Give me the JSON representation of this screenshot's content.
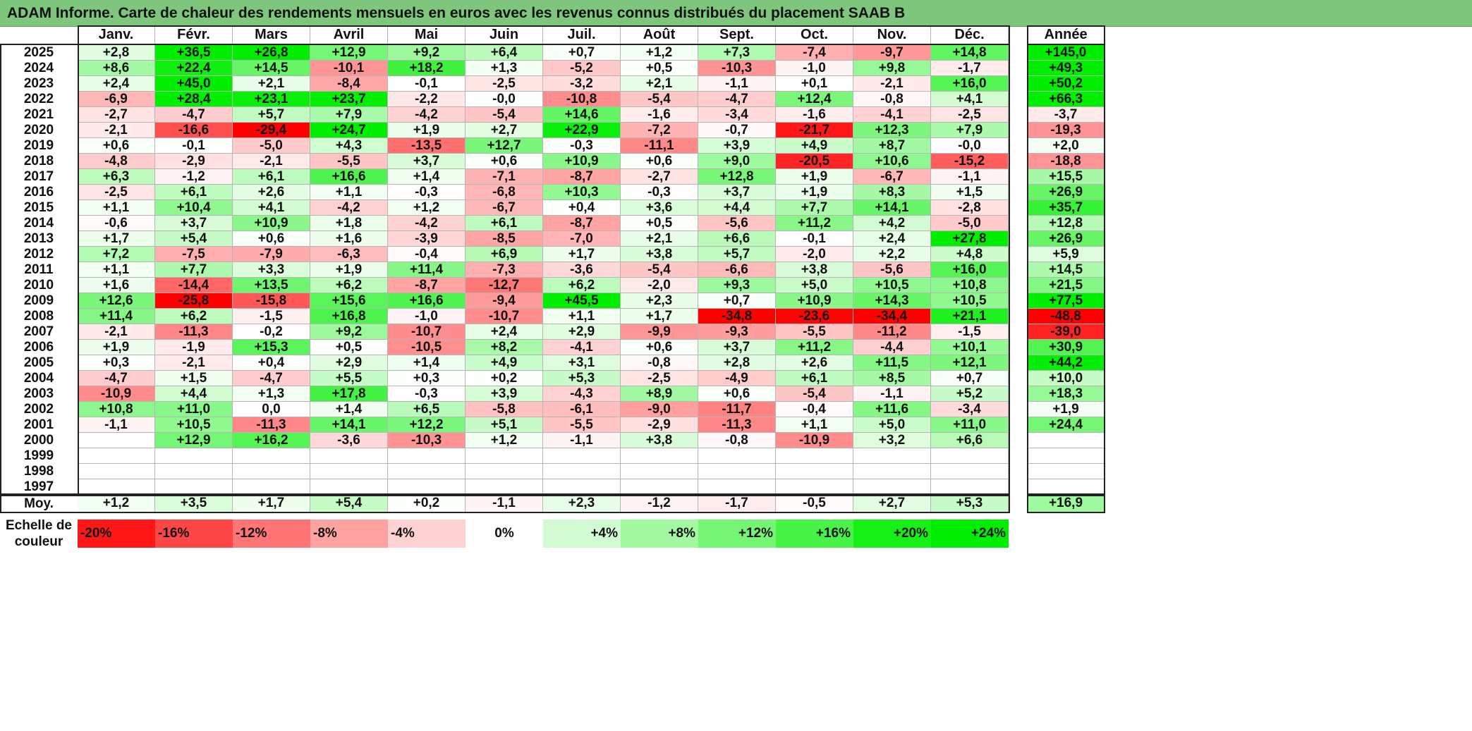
{
  "title": "ADAM Informe. Carte de chaleur des rendements mensuels en euros avec les revenus connus distribués du placement SAAB B",
  "chart_data": {
    "type": "heatmap",
    "columns": [
      "Janv.",
      "Févr.",
      "Mars",
      "Avril",
      "Mai",
      "Juin",
      "Juil.",
      "Août",
      "Sept.",
      "Oct.",
      "Nov.",
      "Déc."
    ],
    "year_label": "Année",
    "avg_label": "Moy.",
    "rows": [
      {
        "year": "2025",
        "values": [
          "+2,8",
          "+36,5",
          "+26,8",
          "+12,9",
          "+9,2",
          "+6,4",
          "+0,7",
          "+1,2",
          "+7,3",
          "-7,4",
          "-9,7",
          "+14,8"
        ],
        "annual": "+145,0"
      },
      {
        "year": "2024",
        "values": [
          "+8,6",
          "+22,4",
          "+14,5",
          "-10,1",
          "+18,2",
          "+1,3",
          "-5,2",
          "+0,5",
          "-10,3",
          "-1,0",
          "+9,8",
          "-1,7"
        ],
        "annual": "+49,3"
      },
      {
        "year": "2023",
        "values": [
          "+2,4",
          "+45,0",
          "+2,1",
          "-8,4",
          "-0,1",
          "-2,5",
          "-3,2",
          "+2,1",
          "-1,1",
          "+0,1",
          "-2,1",
          "+16,0"
        ],
        "annual": "+50,2"
      },
      {
        "year": "2022",
        "values": [
          "-6,9",
          "+28,4",
          "+23,1",
          "+23,7",
          "-2,2",
          "-0,0",
          "-10,8",
          "-5,4",
          "-4,7",
          "+12,4",
          "-0,8",
          "+4,1"
        ],
        "annual": "+66,3"
      },
      {
        "year": "2021",
        "values": [
          "-2,7",
          "-4,7",
          "+5,7",
          "+7,9",
          "-4,2",
          "-5,4",
          "+14,6",
          "-1,6",
          "-3,4",
          "-1,6",
          "-4,1",
          "-2,5"
        ],
        "annual": "-3,7"
      },
      {
        "year": "2020",
        "values": [
          "-2,1",
          "-16,6",
          "-29,4",
          "+24,7",
          "+1,9",
          "+2,7",
          "+22,9",
          "-7,2",
          "-0,7",
          "-21,7",
          "+12,3",
          "+7,9"
        ],
        "annual": "-19,3"
      },
      {
        "year": "2019",
        "values": [
          "+0,6",
          "-0,1",
          "-5,0",
          "+4,3",
          "-13,5",
          "+12,7",
          "-0,3",
          "-11,1",
          "+3,9",
          "+4,9",
          "+8,7",
          "-0,0"
        ],
        "annual": "+2,0"
      },
      {
        "year": "2018",
        "values": [
          "-4,8",
          "-2,9",
          "-2,1",
          "-5,5",
          "+3,7",
          "+0,6",
          "+10,9",
          "+0,6",
          "+9,0",
          "-20,5",
          "+10,6",
          "-15,2"
        ],
        "annual": "-18,8"
      },
      {
        "year": "2017",
        "values": [
          "+6,3",
          "-1,2",
          "+6,1",
          "+16,6",
          "+1,4",
          "-7,1",
          "-8,7",
          "-2,7",
          "+12,8",
          "+1,9",
          "-6,7",
          "-1,1"
        ],
        "annual": "+15,5"
      },
      {
        "year": "2016",
        "values": [
          "-2,5",
          "+6,1",
          "+2,6",
          "+1,1",
          "-0,3",
          "-6,8",
          "+10,3",
          "-0,3",
          "+3,7",
          "+1,9",
          "+8,3",
          "+1,5"
        ],
        "annual": "+26,9"
      },
      {
        "year": "2015",
        "values": [
          "+1,1",
          "+10,4",
          "+4,1",
          "-4,2",
          "+1,2",
          "-6,7",
          "+0,4",
          "+3,6",
          "+4,4",
          "+7,7",
          "+14,1",
          "-2,8"
        ],
        "annual": "+35,7"
      },
      {
        "year": "2014",
        "values": [
          "-0,6",
          "+3,7",
          "+10,9",
          "+1,8",
          "-4,2",
          "+6,1",
          "-8,7",
          "+0,5",
          "-5,6",
          "+11,2",
          "+4,2",
          "-5,0"
        ],
        "annual": "+12,8"
      },
      {
        "year": "2013",
        "values": [
          "+1,7",
          "+5,4",
          "+0,6",
          "+1,6",
          "-3,9",
          "-8,5",
          "-7,0",
          "+2,1",
          "+6,6",
          "-0,1",
          "+2,4",
          "+27,8"
        ],
        "annual": "+26,9"
      },
      {
        "year": "2012",
        "values": [
          "+7,2",
          "-7,5",
          "-7,9",
          "-6,3",
          "-0,4",
          "+6,9",
          "+1,7",
          "+3,8",
          "+5,7",
          "-2,0",
          "+2,2",
          "+4,8"
        ],
        "annual": "+5,9"
      },
      {
        "year": "2011",
        "values": [
          "+1,1",
          "+7,7",
          "+3,3",
          "+1,9",
          "+11,4",
          "-7,3",
          "-3,6",
          "-5,4",
          "-6,6",
          "+3,8",
          "-5,6",
          "+16,0"
        ],
        "annual": "+14,5"
      },
      {
        "year": "2010",
        "values": [
          "+1,6",
          "-14,4",
          "+13,5",
          "+6,2",
          "-8,7",
          "-12,7",
          "+6,2",
          "-2,0",
          "+9,3",
          "+5,0",
          "+10,5",
          "+10,8"
        ],
        "annual": "+21,5"
      },
      {
        "year": "2009",
        "values": [
          "+12,6",
          "-25,8",
          "-15,8",
          "+15,6",
          "+16,6",
          "-9,4",
          "+45,5",
          "+2,3",
          "+0,7",
          "+10,9",
          "+14,3",
          "+10,5"
        ],
        "annual": "+77,5"
      },
      {
        "year": "2008",
        "values": [
          "+11,4",
          "+6,2",
          "-1,5",
          "+16,8",
          "-1,0",
          "-10,7",
          "+1,1",
          "+1,7",
          "-34,8",
          "-23,6",
          "-34,4",
          "+21,1"
        ],
        "annual": "-48,8"
      },
      {
        "year": "2007",
        "values": [
          "-2,1",
          "-11,3",
          "-0,2",
          "+9,2",
          "-10,7",
          "+2,4",
          "+2,9",
          "-9,9",
          "-9,3",
          "-5,5",
          "-11,2",
          "-1,5"
        ],
        "annual": "-39,0"
      },
      {
        "year": "2006",
        "values": [
          "+1,9",
          "-1,9",
          "+15,3",
          "+0,5",
          "-10,5",
          "+8,2",
          "-4,1",
          "+0,6",
          "+3,7",
          "+11,2",
          "-4,4",
          "+10,1"
        ],
        "annual": "+30,9"
      },
      {
        "year": "2005",
        "values": [
          "+0,3",
          "-2,1",
          "+0,4",
          "+2,9",
          "+1,4",
          "+4,9",
          "+3,1",
          "-0,8",
          "+2,8",
          "+2,6",
          "+11,5",
          "+12,1"
        ],
        "annual": "+44,2"
      },
      {
        "year": "2004",
        "values": [
          "-4,7",
          "+1,5",
          "-4,7",
          "+5,5",
          "+0,3",
          "+0,2",
          "+5,3",
          "-2,5",
          "-4,9",
          "+6,1",
          "+8,5",
          "+0,7"
        ],
        "annual": "+10,0"
      },
      {
        "year": "2003",
        "values": [
          "-10,9",
          "+4,4",
          "+1,3",
          "+17,8",
          "-0,3",
          "+3,9",
          "-4,3",
          "+8,9",
          "+0,6",
          "-5,4",
          "-1,1",
          "+5,2"
        ],
        "annual": "+18,3"
      },
      {
        "year": "2002",
        "values": [
          "+10,8",
          "+11,0",
          "0,0",
          "+1,4",
          "+6,5",
          "-5,8",
          "-6,1",
          "-9,0",
          "-11,7",
          "-0,4",
          "+11,6",
          "-3,4"
        ],
        "annual": "+1,9"
      },
      {
        "year": "2001",
        "values": [
          "-1,1",
          "+10,5",
          "-11,3",
          "+14,1",
          "+12,2",
          "+5,1",
          "-5,5",
          "-2,9",
          "-11,3",
          "+1,1",
          "+5,0",
          "+11,0"
        ],
        "annual": "+24,4"
      },
      {
        "year": "2000",
        "values": [
          "",
          "+12,9",
          "+16,2",
          "-3,6",
          "-10,3",
          "+1,2",
          "-1,1",
          "+3,8",
          "-0,8",
          "-10,9",
          "+3,2",
          "+6,6"
        ],
        "annual": ""
      },
      {
        "year": "1999",
        "values": [
          "",
          "",
          "",
          "",
          "",
          "",
          "",
          "",
          "",
          "",
          "",
          ""
        ],
        "annual": ""
      },
      {
        "year": "1998",
        "values": [
          "",
          "",
          "",
          "",
          "",
          "",
          "",
          "",
          "",
          "",
          "",
          ""
        ],
        "annual": ""
      },
      {
        "year": "1997",
        "values": [
          "",
          "",
          "",
          "",
          "",
          "",
          "",
          "",
          "",
          "",
          "",
          ""
        ],
        "annual": ""
      }
    ],
    "averages": {
      "values": [
        "+1,2",
        "+3,5",
        "+1,7",
        "+5,4",
        "+0,2",
        "-1,1",
        "+2,3",
        "-1,2",
        "-1,7",
        "-0,5",
        "+2,7",
        "+5,3"
      ],
      "annual": "+16,9"
    },
    "legend": {
      "label_line1": "Echelle de",
      "label_line2": "couleur",
      "items": [
        "-20%",
        "-16%",
        "-12%",
        "-8%",
        "-4%",
        "0%",
        "+4%",
        "+8%",
        "+12%",
        "+16%",
        "+20%",
        "+24%"
      ]
    },
    "colors": {
      "neg_max": "#ff0000",
      "zero": "#ffffff",
      "pos_max": "#00ee00",
      "title_bg": "#7dc67b"
    }
  }
}
